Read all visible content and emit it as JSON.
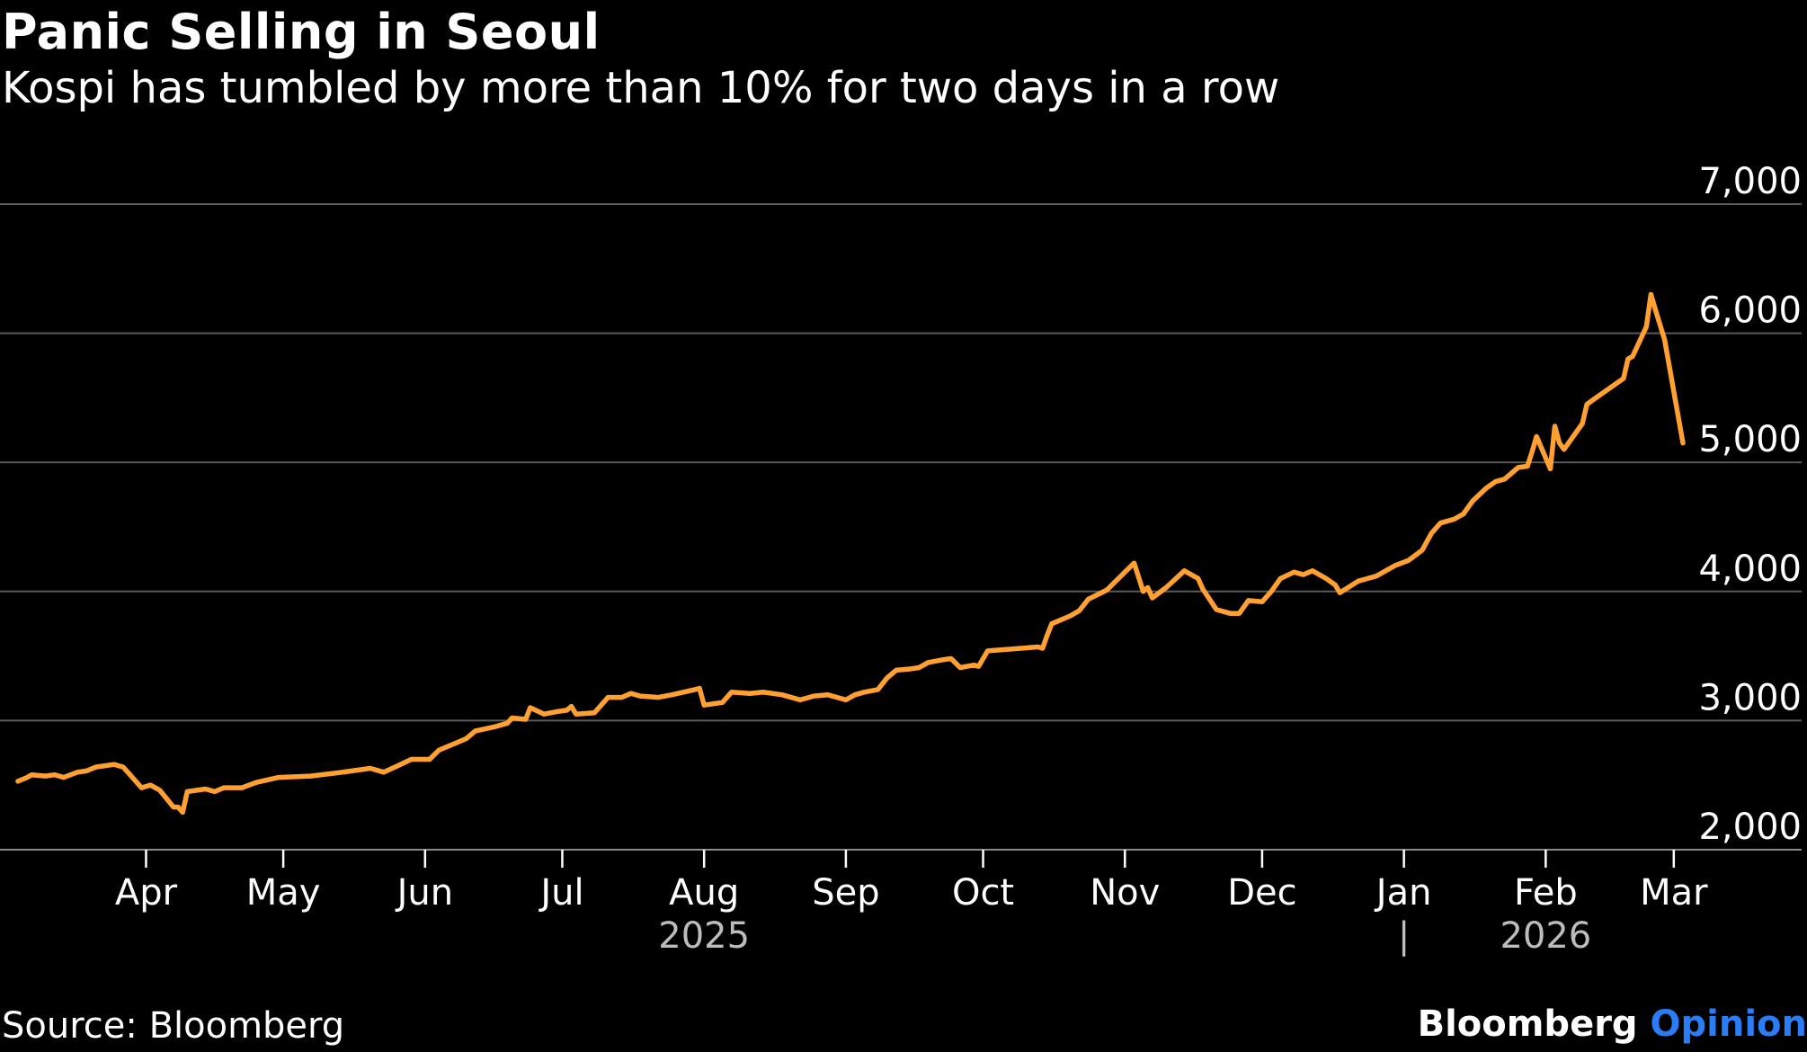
{
  "header": {
    "title": "Panic Selling in Seoul",
    "subtitle": "Kospi has tumbled by more than 10% for two days in a row"
  },
  "footer": {
    "source": "Source: Bloomberg",
    "brand": "Bloomberg",
    "brand_accent": "Opinion"
  },
  "colors": {
    "line": "#ffa030",
    "grid": "#5a5a5a",
    "axis": "#ffffff",
    "year_label": "#bdbdbd",
    "brand_accent": "#2b7df7"
  },
  "chart_data": {
    "type": "line",
    "title": "Panic Selling in Seoul",
    "subtitle": "Kospi has tumbled by more than 10% for two days in a row",
    "xlabel": "",
    "ylabel": "",
    "ylim": [
      2000,
      7000
    ],
    "y_ticks": [
      2000,
      3000,
      4000,
      5000,
      6000,
      7000
    ],
    "y_tick_labels": [
      "2,000",
      "3,000",
      "4,000",
      "5,000",
      "6,000",
      "7,000"
    ],
    "y_axis_position": "right",
    "grid": true,
    "legend": "none",
    "x_ticks": [
      {
        "date": "2025-04-01",
        "label": "Apr"
      },
      {
        "date": "2025-05-01",
        "label": "May"
      },
      {
        "date": "2025-06-01",
        "label": "Jun"
      },
      {
        "date": "2025-07-01",
        "label": "Jul"
      },
      {
        "date": "2025-08-01",
        "label": "Aug"
      },
      {
        "date": "2025-09-01",
        "label": "Sep"
      },
      {
        "date": "2025-10-01",
        "label": "Oct"
      },
      {
        "date": "2025-11-01",
        "label": "Nov"
      },
      {
        "date": "2025-12-01",
        "label": "Dec"
      },
      {
        "date": "2026-01-01",
        "label": "Jan"
      },
      {
        "date": "2026-02-01",
        "label": "Feb"
      },
      {
        "date": "2026-03-01",
        "label": "Mar"
      }
    ],
    "year_labels": [
      {
        "label": "2025",
        "date": "2025-08-01"
      },
      {
        "label": "2026",
        "date": "2026-02-01"
      }
    ],
    "year_divider": {
      "date": "2026-01-01",
      "label": "|"
    },
    "series": [
      {
        "values": [
          [
            "2025-03-04",
            2530
          ],
          [
            "2025-03-06",
            2560
          ],
          [
            "2025-03-07",
            2580
          ],
          [
            "2025-03-10",
            2570
          ],
          [
            "2025-03-12",
            2580
          ],
          [
            "2025-03-14",
            2560
          ],
          [
            "2025-03-17",
            2600
          ],
          [
            "2025-03-19",
            2610
          ],
          [
            "2025-03-21",
            2640
          ],
          [
            "2025-03-25",
            2660
          ],
          [
            "2025-03-27",
            2640
          ],
          [
            "2025-03-28",
            2600
          ],
          [
            "2025-03-31",
            2480
          ],
          [
            "2025-04-02",
            2500
          ],
          [
            "2025-04-04",
            2460
          ],
          [
            "2025-04-07",
            2330
          ],
          [
            "2025-04-08",
            2330
          ],
          [
            "2025-04-09",
            2290
          ],
          [
            "2025-04-10",
            2450
          ],
          [
            "2025-04-14",
            2470
          ],
          [
            "2025-04-16",
            2450
          ],
          [
            "2025-04-18",
            2480
          ],
          [
            "2025-04-22",
            2480
          ],
          [
            "2025-04-25",
            2520
          ],
          [
            "2025-04-30",
            2560
          ],
          [
            "2025-05-07",
            2570
          ],
          [
            "2025-05-14",
            2600
          ],
          [
            "2025-05-16",
            2610
          ],
          [
            "2025-05-20",
            2630
          ],
          [
            "2025-05-23",
            2600
          ],
          [
            "2025-05-26",
            2650
          ],
          [
            "2025-05-29",
            2700
          ],
          [
            "2025-06-02",
            2700
          ],
          [
            "2025-06-04",
            2770
          ],
          [
            "2025-06-10",
            2860
          ],
          [
            "2025-06-12",
            2920
          ],
          [
            "2025-06-16",
            2950
          ],
          [
            "2025-06-19",
            2980
          ],
          [
            "2025-06-20",
            3020
          ],
          [
            "2025-06-23",
            3010
          ],
          [
            "2025-06-24",
            3100
          ],
          [
            "2025-06-27",
            3050
          ],
          [
            "2025-06-30",
            3070
          ],
          [
            "2025-07-02",
            3080
          ],
          [
            "2025-07-03",
            3110
          ],
          [
            "2025-07-04",
            3050
          ],
          [
            "2025-07-08",
            3060
          ],
          [
            "2025-07-10",
            3140
          ],
          [
            "2025-07-11",
            3180
          ],
          [
            "2025-07-14",
            3180
          ],
          [
            "2025-07-16",
            3210
          ],
          [
            "2025-07-18",
            3190
          ],
          [
            "2025-07-22",
            3180
          ],
          [
            "2025-07-25",
            3200
          ],
          [
            "2025-07-30",
            3240
          ],
          [
            "2025-07-31",
            3250
          ],
          [
            "2025-08-01",
            3120
          ],
          [
            "2025-08-05",
            3140
          ],
          [
            "2025-08-07",
            3220
          ],
          [
            "2025-08-11",
            3210
          ],
          [
            "2025-08-14",
            3220
          ],
          [
            "2025-08-18",
            3200
          ],
          [
            "2025-08-22",
            3160
          ],
          [
            "2025-08-25",
            3190
          ],
          [
            "2025-08-28",
            3200
          ],
          [
            "2025-09-01",
            3160
          ],
          [
            "2025-09-03",
            3200
          ],
          [
            "2025-09-05",
            3220
          ],
          [
            "2025-09-08",
            3240
          ],
          [
            "2025-09-10",
            3330
          ],
          [
            "2025-09-12",
            3390
          ],
          [
            "2025-09-15",
            3400
          ],
          [
            "2025-09-17",
            3410
          ],
          [
            "2025-09-19",
            3450
          ],
          [
            "2025-09-22",
            3470
          ],
          [
            "2025-09-24",
            3480
          ],
          [
            "2025-09-26",
            3410
          ],
          [
            "2025-09-29",
            3430
          ],
          [
            "2025-09-30",
            3420
          ],
          [
            "2025-10-02",
            3540
          ],
          [
            "2025-10-13",
            3570
          ],
          [
            "2025-10-14",
            3560
          ],
          [
            "2025-10-15",
            3660
          ],
          [
            "2025-10-16",
            3750
          ],
          [
            "2025-10-20",
            3810
          ],
          [
            "2025-10-22",
            3850
          ],
          [
            "2025-10-24",
            3940
          ],
          [
            "2025-10-28",
            4010
          ],
          [
            "2025-10-30",
            4080
          ],
          [
            "2025-11-03",
            4220
          ],
          [
            "2025-11-05",
            4000
          ],
          [
            "2025-11-06",
            4030
          ],
          [
            "2025-11-07",
            3950
          ],
          [
            "2025-11-10",
            4030
          ],
          [
            "2025-11-14",
            4160
          ],
          [
            "2025-11-17",
            4100
          ],
          [
            "2025-11-18",
            4020
          ],
          [
            "2025-11-21",
            3860
          ],
          [
            "2025-11-24",
            3830
          ],
          [
            "2025-11-26",
            3830
          ],
          [
            "2025-11-28",
            3930
          ],
          [
            "2025-12-01",
            3920
          ],
          [
            "2025-12-03",
            4000
          ],
          [
            "2025-12-05",
            4100
          ],
          [
            "2025-12-08",
            4150
          ],
          [
            "2025-12-10",
            4130
          ],
          [
            "2025-12-12",
            4160
          ],
          [
            "2025-12-15",
            4100
          ],
          [
            "2025-12-17",
            4050
          ],
          [
            "2025-12-18",
            3990
          ],
          [
            "2025-12-22",
            4080
          ],
          [
            "2025-12-26",
            4120
          ],
          [
            "2025-12-30",
            4200
          ],
          [
            "2026-01-02",
            4240
          ],
          [
            "2026-01-05",
            4320
          ],
          [
            "2026-01-07",
            4450
          ],
          [
            "2026-01-09",
            4530
          ],
          [
            "2026-01-12",
            4560
          ],
          [
            "2026-01-14",
            4600
          ],
          [
            "2026-01-16",
            4700
          ],
          [
            "2026-01-19",
            4800
          ],
          [
            "2026-01-21",
            4850
          ],
          [
            "2026-01-23",
            4870
          ],
          [
            "2026-01-26",
            4960
          ],
          [
            "2026-01-28",
            4970
          ],
          [
            "2026-01-29",
            5080
          ],
          [
            "2026-01-30",
            5200
          ],
          [
            "2026-02-02",
            4950
          ],
          [
            "2026-02-03",
            5280
          ],
          [
            "2026-02-04",
            5150
          ],
          [
            "2026-02-05",
            5100
          ],
          [
            "2026-02-09",
            5300
          ],
          [
            "2026-02-10",
            5450
          ],
          [
            "2026-02-12",
            5500
          ],
          [
            "2026-02-18",
            5650
          ],
          [
            "2026-02-19",
            5800
          ],
          [
            "2026-02-20",
            5820
          ],
          [
            "2026-02-23",
            6050
          ],
          [
            "2026-02-24",
            6300
          ],
          [
            "2026-02-25",
            6180
          ],
          [
            "2026-02-27",
            5950
          ],
          [
            "2026-02-28",
            5750
          ],
          [
            "2026-03-03",
            5150
          ]
        ]
      }
    ]
  }
}
